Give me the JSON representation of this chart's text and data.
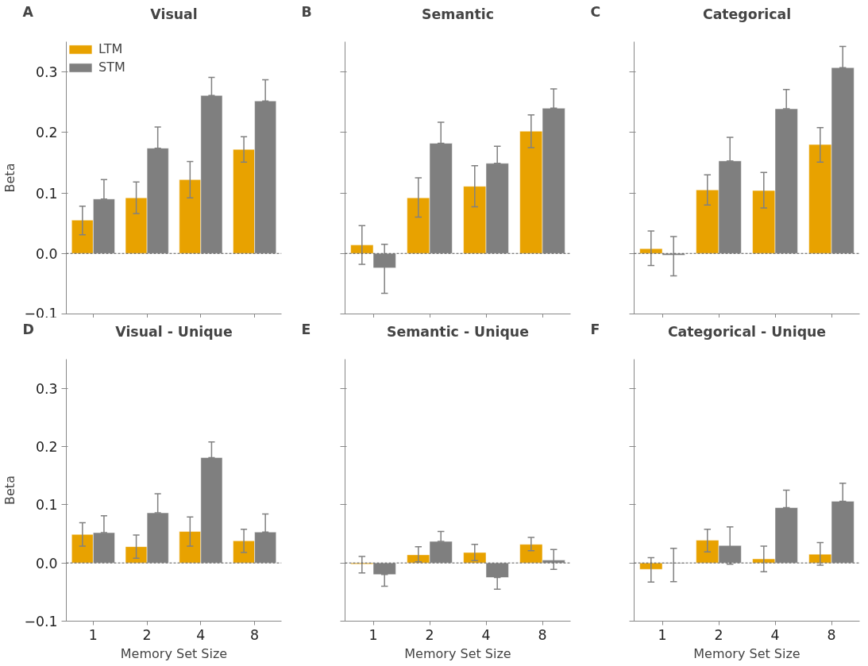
{
  "chart_data": [
    {
      "type": "bar",
      "title": "Visual",
      "annotations": [
        "A"
      ],
      "ylabel": "Beta",
      "categories": [
        "1",
        "2",
        "4",
        "8"
      ],
      "tick_labels": "y",
      "legend": "top left",
      "grid": false,
      "ylim": [
        -0.1,
        0.35
      ],
      "yticks": [
        {
          "value": -0.1,
          "label": "−0.1"
        },
        {
          "value": 0,
          "label": "0.0"
        },
        {
          "value": 0.1,
          "label": "0.1"
        },
        {
          "value": 0.2,
          "label": "0.2"
        },
        {
          "value": 0.3,
          "label": "0.3"
        }
      ],
      "ref_lines": [
        {
          "axis": "y",
          "value": 0,
          "label": null,
          "color": "#555555",
          "line_style": "dashed"
        }
      ],
      "series": [
        {
          "name": "LTM",
          "color": "#e8a200",
          "values": [
            0.055,
            0.092,
            0.122,
            0.172
          ],
          "errors": [
            [
              0.031,
              0.078
            ],
            [
              0.066,
              0.118
            ],
            [
              0.092,
              0.152
            ],
            [
              0.151,
              0.193
            ]
          ]
        },
        {
          "name": "STM",
          "color": "#7f7f7f",
          "values": [
            0.09,
            0.174,
            0.261,
            0.252
          ],
          "errors": [
            [
              0.09,
              0.122
            ],
            [
              0.174,
              0.209
            ],
            [
              0.261,
              0.291
            ],
            [
              0.252,
              0.287
            ]
          ]
        }
      ]
    },
    {
      "type": "bar",
      "title": "Semantic",
      "annotations": [
        "B"
      ],
      "categories": [
        "1",
        "2",
        "4",
        "8"
      ],
      "tick_labels": false,
      "grid": false,
      "ylim": [
        -0.1,
        0.35
      ],
      "yticks": [
        {
          "value": -0.1,
          "label": null
        },
        {
          "value": 0,
          "label": null
        },
        {
          "value": 0.1,
          "label": null
        },
        {
          "value": 0.2,
          "label": null
        },
        {
          "value": 0.3,
          "label": null
        }
      ],
      "ref_lines": [
        {
          "axis": "y",
          "value": 0,
          "label": null,
          "color": "#555555",
          "line_style": "dashed"
        }
      ],
      "series": [
        {
          "color": "#e8a200",
          "values": [
            0.014,
            0.092,
            0.111,
            0.202
          ],
          "errors": [
            [
              -0.018,
              0.046
            ],
            [
              0.06,
              0.125
            ],
            [
              0.077,
              0.145
            ],
            [
              0.175,
              0.229
            ]
          ]
        },
        {
          "color": "#7f7f7f",
          "values": [
            -0.024,
            0.182,
            0.149,
            0.24
          ],
          "errors": [
            [
              -0.066,
              0.015
            ],
            [
              0.182,
              0.217
            ],
            [
              0.149,
              0.177
            ],
            [
              0.24,
              0.272
            ]
          ]
        }
      ]
    },
    {
      "type": "bar",
      "title": "Categorical",
      "annotations": [
        "C"
      ],
      "categories": [
        "1",
        "2",
        "4",
        "8"
      ],
      "tick_labels": false,
      "grid": false,
      "ylim": [
        -0.1,
        0.35
      ],
      "yticks": [
        {
          "value": -0.1,
          "label": null
        },
        {
          "value": 0,
          "label": null
        },
        {
          "value": 0.1,
          "label": null
        },
        {
          "value": 0.2,
          "label": null
        },
        {
          "value": 0.3,
          "label": null
        }
      ],
      "ref_lines": [
        {
          "axis": "y",
          "value": 0,
          "label": null,
          "color": "#555555",
          "line_style": "dashed"
        }
      ],
      "series": [
        {
          "color": "#e8a200",
          "values": [
            0.008,
            0.105,
            0.104,
            0.18
          ],
          "errors": [
            [
              -0.02,
              0.037
            ],
            [
              0.08,
              0.13
            ],
            [
              0.075,
              0.134
            ],
            [
              0.151,
              0.208
            ]
          ]
        },
        {
          "color": "#7f7f7f",
          "values": [
            -0.003,
            0.153,
            0.239,
            0.307
          ],
          "errors": [
            [
              -0.037,
              0.028
            ],
            [
              0.153,
              0.192
            ],
            [
              0.239,
              0.271
            ],
            [
              0.307,
              0.342
            ]
          ]
        }
      ]
    },
    {
      "type": "bar",
      "title": "Visual - Unique",
      "annotations": [
        "D"
      ],
      "ylabel": "Beta",
      "xlabel": "Memory Set Size",
      "categories": [
        "1",
        "2",
        "4",
        "8"
      ],
      "grid": false,
      "ylim": [
        -0.1,
        0.35
      ],
      "yticks": [
        {
          "value": -0.1,
          "label": "−0.1"
        },
        {
          "value": 0,
          "label": "0.0"
        },
        {
          "value": 0.1,
          "label": "0.1"
        },
        {
          "value": 0.2,
          "label": "0.2"
        },
        {
          "value": 0.3,
          "label": "0.3"
        }
      ],
      "ref_lines": [
        {
          "axis": "y",
          "value": 0,
          "label": null,
          "color": "#555555",
          "line_style": "dashed"
        }
      ],
      "series": [
        {
          "color": "#e8a200",
          "values": [
            0.049,
            0.028,
            0.054,
            0.038
          ],
          "errors": [
            [
              0.029,
              0.069
            ],
            [
              0.008,
              0.048
            ],
            [
              0.029,
              0.079
            ],
            [
              0.018,
              0.058
            ]
          ]
        },
        {
          "color": "#7f7f7f",
          "values": [
            0.052,
            0.086,
            0.181,
            0.053
          ],
          "errors": [
            [
              0.052,
              0.081
            ],
            [
              0.086,
              0.119
            ],
            [
              0.181,
              0.208
            ],
            [
              0.053,
              0.084
            ]
          ]
        }
      ]
    },
    {
      "type": "bar",
      "title": "Semantic - Unique",
      "annotations": [
        "E"
      ],
      "xlabel": "Memory Set Size",
      "categories": [
        "1",
        "2",
        "4",
        "8"
      ],
      "tick_labels": "x",
      "grid": false,
      "ylim": [
        -0.1,
        0.35
      ],
      "yticks": [
        {
          "value": -0.1,
          "label": null
        },
        {
          "value": 0,
          "label": null
        },
        {
          "value": 0.1,
          "label": null
        },
        {
          "value": 0.2,
          "label": null
        },
        {
          "value": 0.3,
          "label": null
        }
      ],
      "ref_lines": [
        {
          "axis": "y",
          "value": 0,
          "label": null,
          "color": "#555555",
          "line_style": "dashed"
        }
      ],
      "series": [
        {
          "color": "#e8a200",
          "values": [
            -0.002,
            0.014,
            0.018,
            0.032
          ],
          "errors": [
            [
              -0.017,
              0.011
            ],
            [
              0.002,
              0.028
            ],
            [
              0.004,
              0.032
            ],
            [
              0.021,
              0.044
            ]
          ]
        },
        {
          "color": "#7f7f7f",
          "values": [
            -0.02,
            0.037,
            -0.025,
            0.005
          ],
          "errors": [
            [
              -0.04,
              -0.02
            ],
            [
              0.037,
              0.054
            ],
            [
              -0.045,
              -0.025
            ],
            [
              -0.011,
              0.023
            ]
          ]
        }
      ]
    },
    {
      "type": "bar",
      "title": "Categorical - Unique",
      "annotations": [
        "F"
      ],
      "xlabel": "Memory Set Size",
      "categories": [
        "1",
        "2",
        "4",
        "8"
      ],
      "tick_labels": "x",
      "grid": false,
      "ylim": [
        -0.1,
        0.35
      ],
      "yticks": [
        {
          "value": -0.1,
          "label": null
        },
        {
          "value": 0,
          "label": null
        },
        {
          "value": 0.1,
          "label": null
        },
        {
          "value": 0.2,
          "label": null
        },
        {
          "value": 0.3,
          "label": null
        }
      ],
      "ref_lines": [
        {
          "axis": "y",
          "value": 0,
          "label": null,
          "color": "#555555",
          "line_style": "dashed"
        }
      ],
      "series": [
        {
          "color": "#e8a200",
          "values": [
            -0.011,
            0.039,
            0.007,
            0.015
          ],
          "errors": [
            [
              -0.033,
              0.009
            ],
            [
              0.019,
              0.058
            ],
            [
              -0.015,
              0.029
            ],
            [
              -0.004,
              0.035
            ]
          ]
        },
        {
          "color": "#7f7f7f",
          "values": [
            -0.001,
            0.03,
            0.095,
            0.106
          ],
          "errors": [
            [
              -0.032,
              0.025
            ],
            [
              -0.002,
              0.062
            ],
            [
              0.095,
              0.125
            ],
            [
              0.106,
              0.137
            ]
          ]
        }
      ]
    }
  ]
}
